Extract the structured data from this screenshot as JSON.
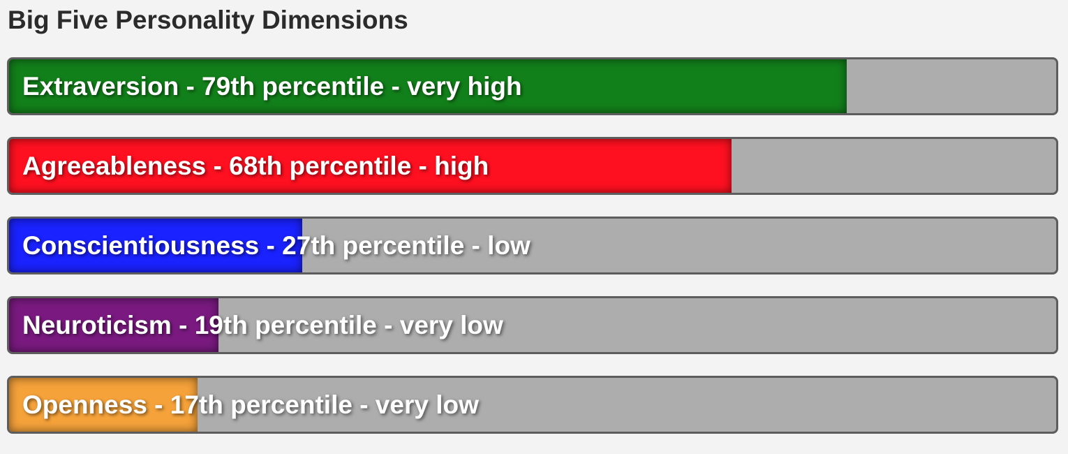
{
  "title": "Big Five Personality Dimensions",
  "dimensions": [
    {
      "label": "Extraversion - 79th percentile - very high",
      "percentile": 79,
      "fill_fraction": 0.8,
      "color": "#12801a"
    },
    {
      "label": "Agreeableness - 68th percentile - high",
      "percentile": 68,
      "fill_fraction": 0.69,
      "color": "#ff1020"
    },
    {
      "label": "Conscientiousness - 27th percentile - low",
      "percentile": 27,
      "fill_fraction": 0.28,
      "color": "#1a22ff"
    },
    {
      "label": "Neuroticism - 19th percentile - very low",
      "percentile": 19,
      "fill_fraction": 0.2,
      "color": "#7a1a80"
    },
    {
      "label": "Openness - 17th percentile - very low",
      "percentile": 17,
      "fill_fraction": 0.18,
      "color": "#f5a23a"
    }
  ]
}
